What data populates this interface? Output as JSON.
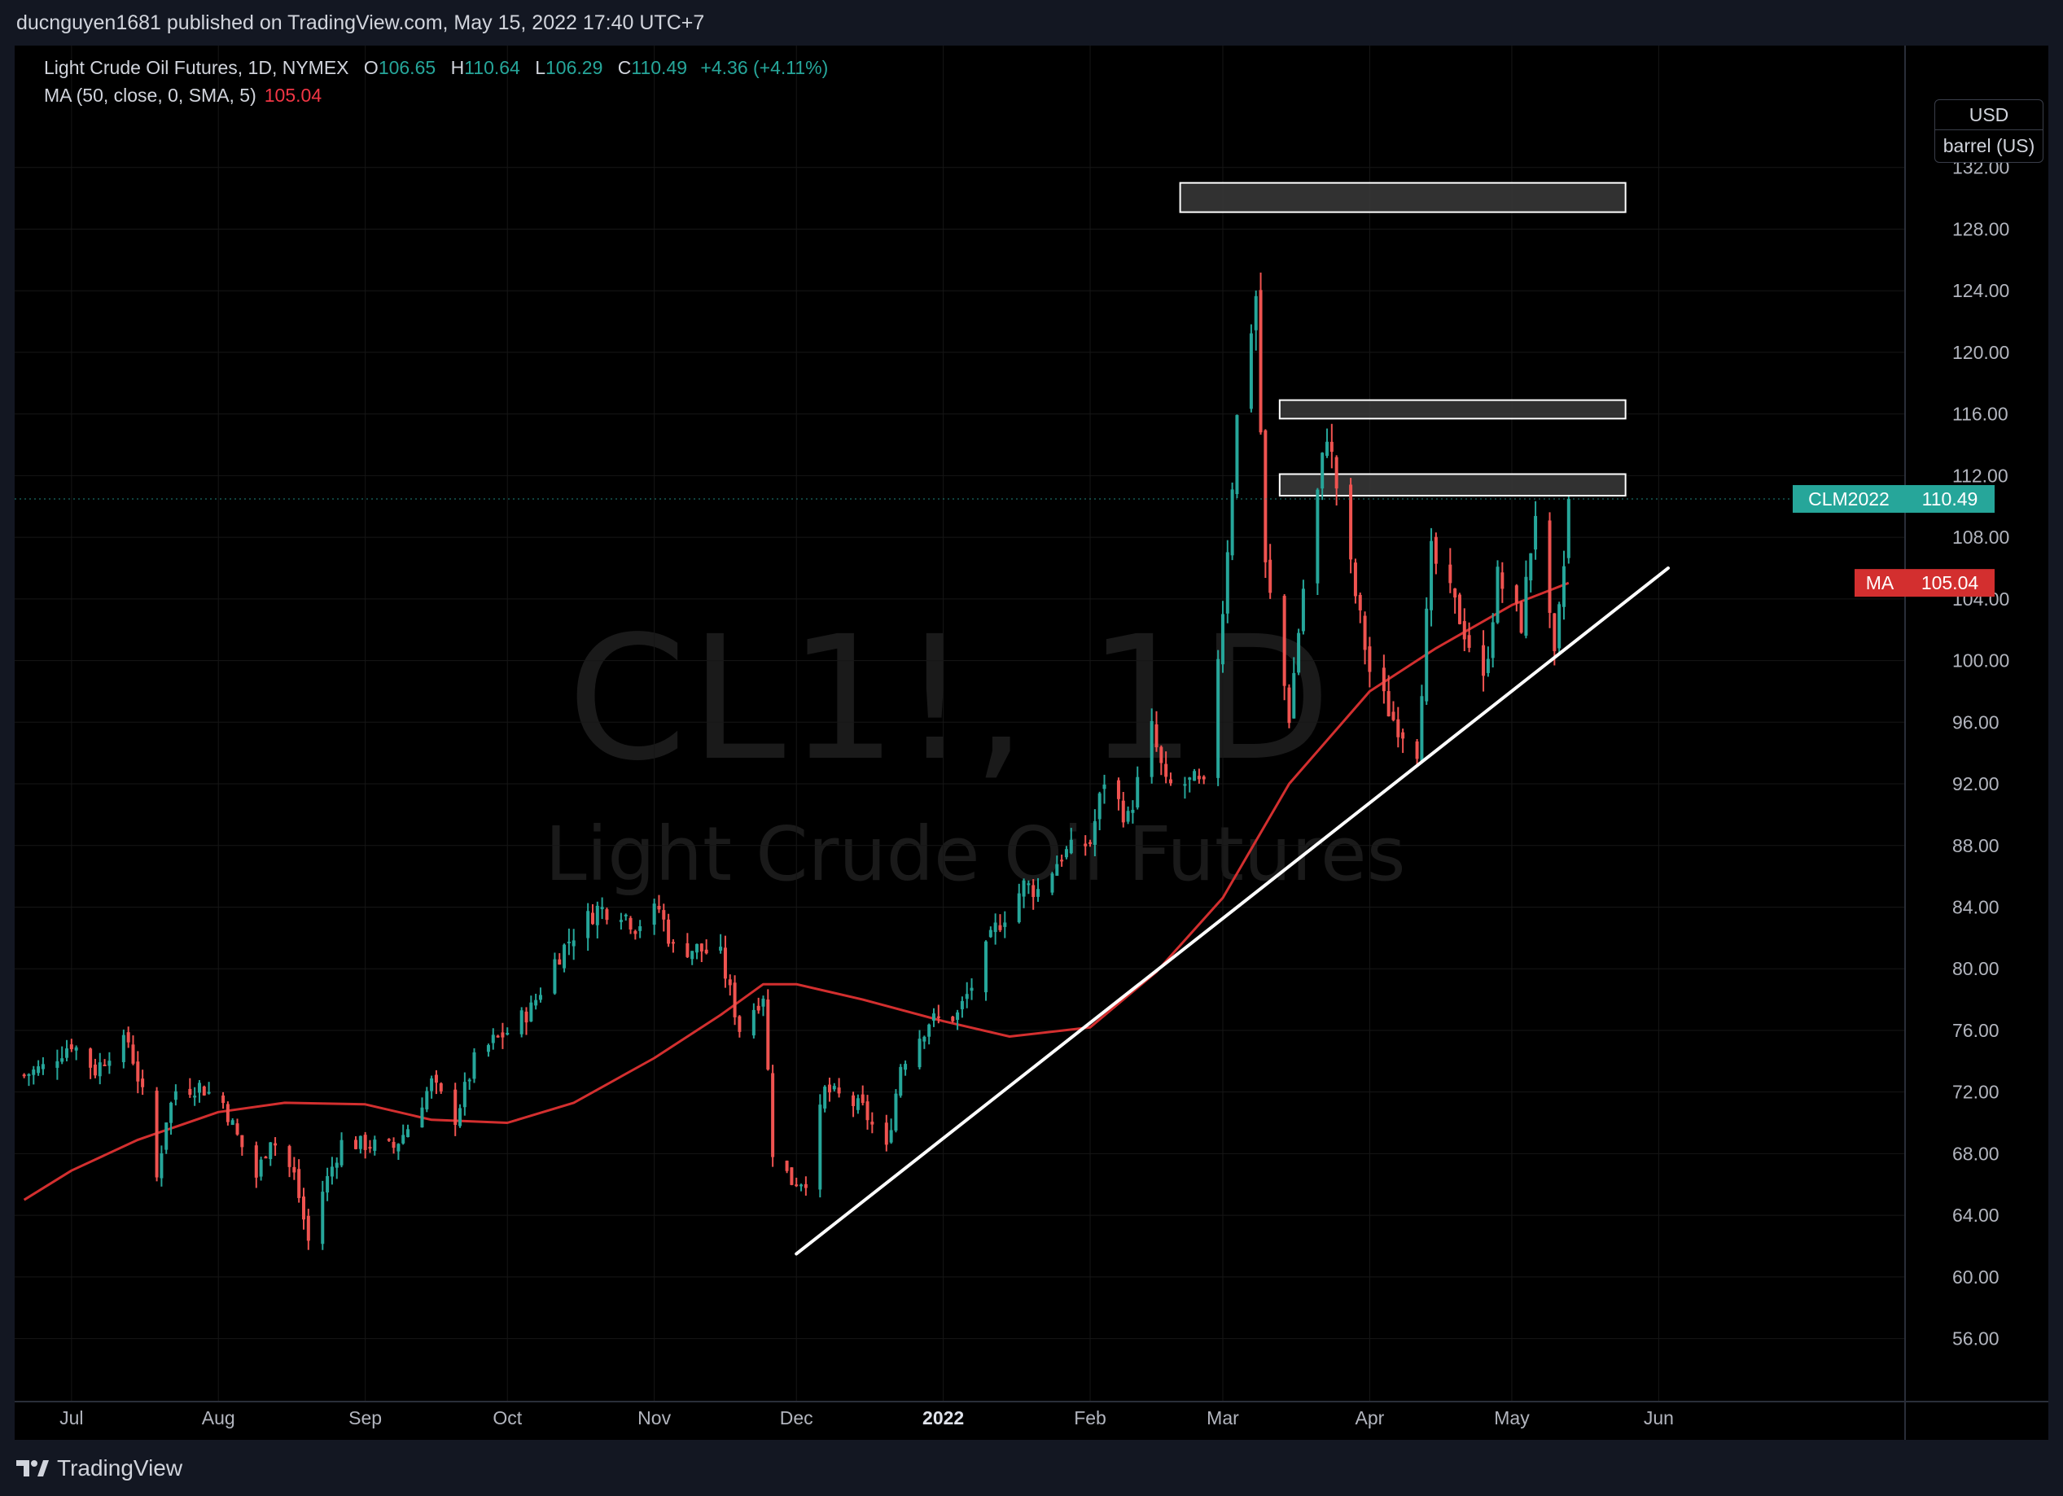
{
  "header": {
    "text": "ducnguyen1681 published on TradingView.com, May 15, 2022 17:40 UTC+7"
  },
  "legend": {
    "title": "Light Crude Oil Futures, 1D, NYMEX",
    "o_label": "O",
    "o_value": "106.65",
    "h_label": "H",
    "h_value": "110.64",
    "l_label": "L",
    "l_value": "106.29",
    "c_label": "C",
    "c_value": "110.49",
    "change": "+4.36 (+4.11%)",
    "ma_label": "MA (50, close, 0, SMA, 5)",
    "ma_value": "105.04"
  },
  "watermark": {
    "symbol": "CL1!, 1D",
    "name": "Light Crude Oil Futures"
  },
  "price_scale": {
    "currency": "USD",
    "unit": "barrel (US)"
  },
  "footer": {
    "brand": "TradingView"
  },
  "colors": {
    "up": "#26a69a",
    "down": "#ef5350",
    "ma": "#d32f2f",
    "trendline": "#ffffff",
    "zone": "#3a3a3a"
  },
  "chart_data": {
    "type": "candlestick",
    "title": "Light Crude Oil Futures, 1D, NYMEX",
    "symbol": "CL1!",
    "ylim": [
      54.5,
      136
    ],
    "y_ticks": [
      "56.00",
      "60.00",
      "64.00",
      "68.00",
      "72.00",
      "76.00",
      "80.00",
      "84.00",
      "88.00",
      "92.00",
      "96.00",
      "100.00",
      "104.00",
      "108.00",
      "112.00",
      "116.00",
      "120.00",
      "124.00",
      "128.00",
      "132.00"
    ],
    "x_ticks": [
      {
        "label": "Jul",
        "date": "2021-07-01",
        "bold": false
      },
      {
        "label": "Aug",
        "date": "2021-08-01",
        "bold": false
      },
      {
        "label": "Sep",
        "date": "2021-09-01",
        "bold": false
      },
      {
        "label": "Oct",
        "date": "2021-10-01",
        "bold": false
      },
      {
        "label": "Nov",
        "date": "2021-11-01",
        "bold": false
      },
      {
        "label": "Dec",
        "date": "2021-12-01",
        "bold": false
      },
      {
        "label": "2022",
        "date": "2022-01-01",
        "bold": true
      },
      {
        "label": "Feb",
        "date": "2022-02-01",
        "bold": false
      },
      {
        "label": "Mar",
        "date": "2022-03-01",
        "bold": false
      },
      {
        "label": "Apr",
        "date": "2022-04-01",
        "bold": false
      },
      {
        "label": "May",
        "date": "2022-05-01",
        "bold": false
      },
      {
        "label": "Jun",
        "date": "2022-06-01",
        "bold": false
      }
    ],
    "close_series": [
      {
        "date": "2021-06-21",
        "close": 73.1
      },
      {
        "date": "2021-06-25",
        "close": 73.6
      },
      {
        "date": "2021-07-01",
        "close": 75.2
      },
      {
        "date": "2021-07-06",
        "close": 73.4
      },
      {
        "date": "2021-07-09",
        "close": 74.6
      },
      {
        "date": "2021-07-13",
        "close": 75.3
      },
      {
        "date": "2021-07-16",
        "close": 71.8
      },
      {
        "date": "2021-07-19",
        "close": 66.4
      },
      {
        "date": "2021-07-21",
        "close": 70.3
      },
      {
        "date": "2021-07-23",
        "close": 72.1
      },
      {
        "date": "2021-07-28",
        "close": 72.4
      },
      {
        "date": "2021-08-02",
        "close": 71.3
      },
      {
        "date": "2021-08-05",
        "close": 69.1
      },
      {
        "date": "2021-08-09",
        "close": 66.5
      },
      {
        "date": "2021-08-12",
        "close": 69.1
      },
      {
        "date": "2021-08-17",
        "close": 66.6
      },
      {
        "date": "2021-08-20",
        "close": 62.3
      },
      {
        "date": "2021-08-23",
        "close": 65.6
      },
      {
        "date": "2021-08-27",
        "close": 68.7
      },
      {
        "date": "2021-09-01",
        "close": 68.6
      },
      {
        "date": "2021-09-07",
        "close": 68.4
      },
      {
        "date": "2021-09-10",
        "close": 69.7
      },
      {
        "date": "2021-09-15",
        "close": 72.6
      },
      {
        "date": "2021-09-20",
        "close": 70.3
      },
      {
        "date": "2021-09-24",
        "close": 74.0
      },
      {
        "date": "2021-09-28",
        "close": 75.3
      },
      {
        "date": "2021-10-01",
        "close": 75.9
      },
      {
        "date": "2021-10-06",
        "close": 77.4
      },
      {
        "date": "2021-10-11",
        "close": 80.5
      },
      {
        "date": "2021-10-15",
        "close": 82.3
      },
      {
        "date": "2021-10-20",
        "close": 83.9
      },
      {
        "date": "2021-10-25",
        "close": 83.8
      },
      {
        "date": "2021-10-28",
        "close": 82.8
      },
      {
        "date": "2021-11-02",
        "close": 83.9
      },
      {
        "date": "2021-11-05",
        "close": 81.3
      },
      {
        "date": "2021-11-10",
        "close": 81.3
      },
      {
        "date": "2021-11-15",
        "close": 80.8
      },
      {
        "date": "2021-11-19",
        "close": 76.1
      },
      {
        "date": "2021-11-24",
        "close": 78.4
      },
      {
        "date": "2021-11-26",
        "close": 68.2
      },
      {
        "date": "2021-11-30",
        "close": 66.2
      },
      {
        "date": "2021-12-03",
        "close": 66.3
      },
      {
        "date": "2021-12-07",
        "close": 72.1
      },
      {
        "date": "2021-12-10",
        "close": 71.7
      },
      {
        "date": "2021-12-15",
        "close": 70.9
      },
      {
        "date": "2021-12-20",
        "close": 68.2
      },
      {
        "date": "2021-12-23",
        "close": 73.8
      },
      {
        "date": "2021-12-29",
        "close": 76.6
      },
      {
        "date": "2022-01-04",
        "close": 76.99
      },
      {
        "date": "2022-01-07",
        "close": 78.9
      },
      {
        "date": "2022-01-12",
        "close": 82.6
      },
      {
        "date": "2022-01-18",
        "close": 85.4
      },
      {
        "date": "2022-01-21",
        "close": 85.1
      },
      {
        "date": "2022-01-26",
        "close": 87.4
      },
      {
        "date": "2022-02-01",
        "close": 88.2
      },
      {
        "date": "2022-02-04",
        "close": 92.3
      },
      {
        "date": "2022-02-09",
        "close": 89.7
      },
      {
        "date": "2022-02-14",
        "close": 95.5
      },
      {
        "date": "2022-02-17",
        "close": 91.8
      },
      {
        "date": "2022-02-23",
        "close": 92.1
      },
      {
        "date": "2022-02-25",
        "close": 91.6
      },
      {
        "date": "2022-03-01",
        "close": 103.4
      },
      {
        "date": "2022-03-04",
        "close": 115.7
      },
      {
        "date": "2022-03-08",
        "close": 123.7
      },
      {
        "date": "2022-03-10",
        "close": 106.0
      },
      {
        "date": "2022-03-15",
        "close": 96.4
      },
      {
        "date": "2022-03-18",
        "close": 104.7
      },
      {
        "date": "2022-03-23",
        "close": 114.9
      },
      {
        "date": "2022-03-28",
        "close": 105.9
      },
      {
        "date": "2022-04-01",
        "close": 99.3
      },
      {
        "date": "2022-04-06",
        "close": 96.2
      },
      {
        "date": "2022-04-11",
        "close": 94.3
      },
      {
        "date": "2022-04-14",
        "close": 106.9
      },
      {
        "date": "2022-04-20",
        "close": 102.8
      },
      {
        "date": "2022-04-25",
        "close": 98.5
      },
      {
        "date": "2022-04-28",
        "close": 105.4
      },
      {
        "date": "2022-05-03",
        "close": 102.4
      },
      {
        "date": "2022-05-06",
        "close": 109.8
      },
      {
        "date": "2022-05-10",
        "close": 99.8
      },
      {
        "date": "2022-05-12",
        "close": 106.1
      },
      {
        "date": "2022-05-13",
        "close": 110.49
      }
    ],
    "ma_series": [
      {
        "date": "2021-06-21",
        "value": 65.0
      },
      {
        "date": "2021-07-01",
        "value": 66.9
      },
      {
        "date": "2021-07-15",
        "value": 68.9
      },
      {
        "date": "2021-08-01",
        "value": 70.7
      },
      {
        "date": "2021-08-15",
        "value": 71.3
      },
      {
        "date": "2021-09-01",
        "value": 71.2
      },
      {
        "date": "2021-09-15",
        "value": 70.2
      },
      {
        "date": "2021-10-01",
        "value": 70.0
      },
      {
        "date": "2021-10-15",
        "value": 71.3
      },
      {
        "date": "2021-11-01",
        "value": 74.2
      },
      {
        "date": "2021-11-15",
        "value": 77.0
      },
      {
        "date": "2021-11-24",
        "value": 79.0
      },
      {
        "date": "2021-12-01",
        "value": 79.0
      },
      {
        "date": "2021-12-15",
        "value": 78.0
      },
      {
        "date": "2022-01-01",
        "value": 76.6
      },
      {
        "date": "2022-01-15",
        "value": 75.6
      },
      {
        "date": "2022-02-01",
        "value": 76.2
      },
      {
        "date": "2022-02-15",
        "value": 79.8
      },
      {
        "date": "2022-03-01",
        "value": 84.6
      },
      {
        "date": "2022-03-15",
        "value": 92.0
      },
      {
        "date": "2022-04-01",
        "value": 98.0
      },
      {
        "date": "2022-04-15",
        "value": 100.8
      },
      {
        "date": "2022-05-01",
        "value": 103.6
      },
      {
        "date": "2022-05-13",
        "value": 105.04
      }
    ],
    "trendline": [
      {
        "date": "2021-12-01",
        "price": 61.5
      },
      {
        "date": "2022-06-03",
        "price": 106.0
      }
    ],
    "resistance_zones": [
      {
        "start": "2022-02-20",
        "end": "2022-05-25",
        "low": 129.1,
        "high": 131.0
      },
      {
        "start": "2022-03-13",
        "end": "2022-05-25",
        "low": 115.7,
        "high": 116.9
      },
      {
        "start": "2022-03-13",
        "end": "2022-05-25",
        "low": 110.7,
        "high": 112.1
      }
    ],
    "price_labels": [
      {
        "name": "CLM2022",
        "value": 110.49,
        "color": "#26a69a"
      },
      {
        "name": "MA",
        "value": 105.04,
        "color": "#d32f2f"
      }
    ]
  }
}
